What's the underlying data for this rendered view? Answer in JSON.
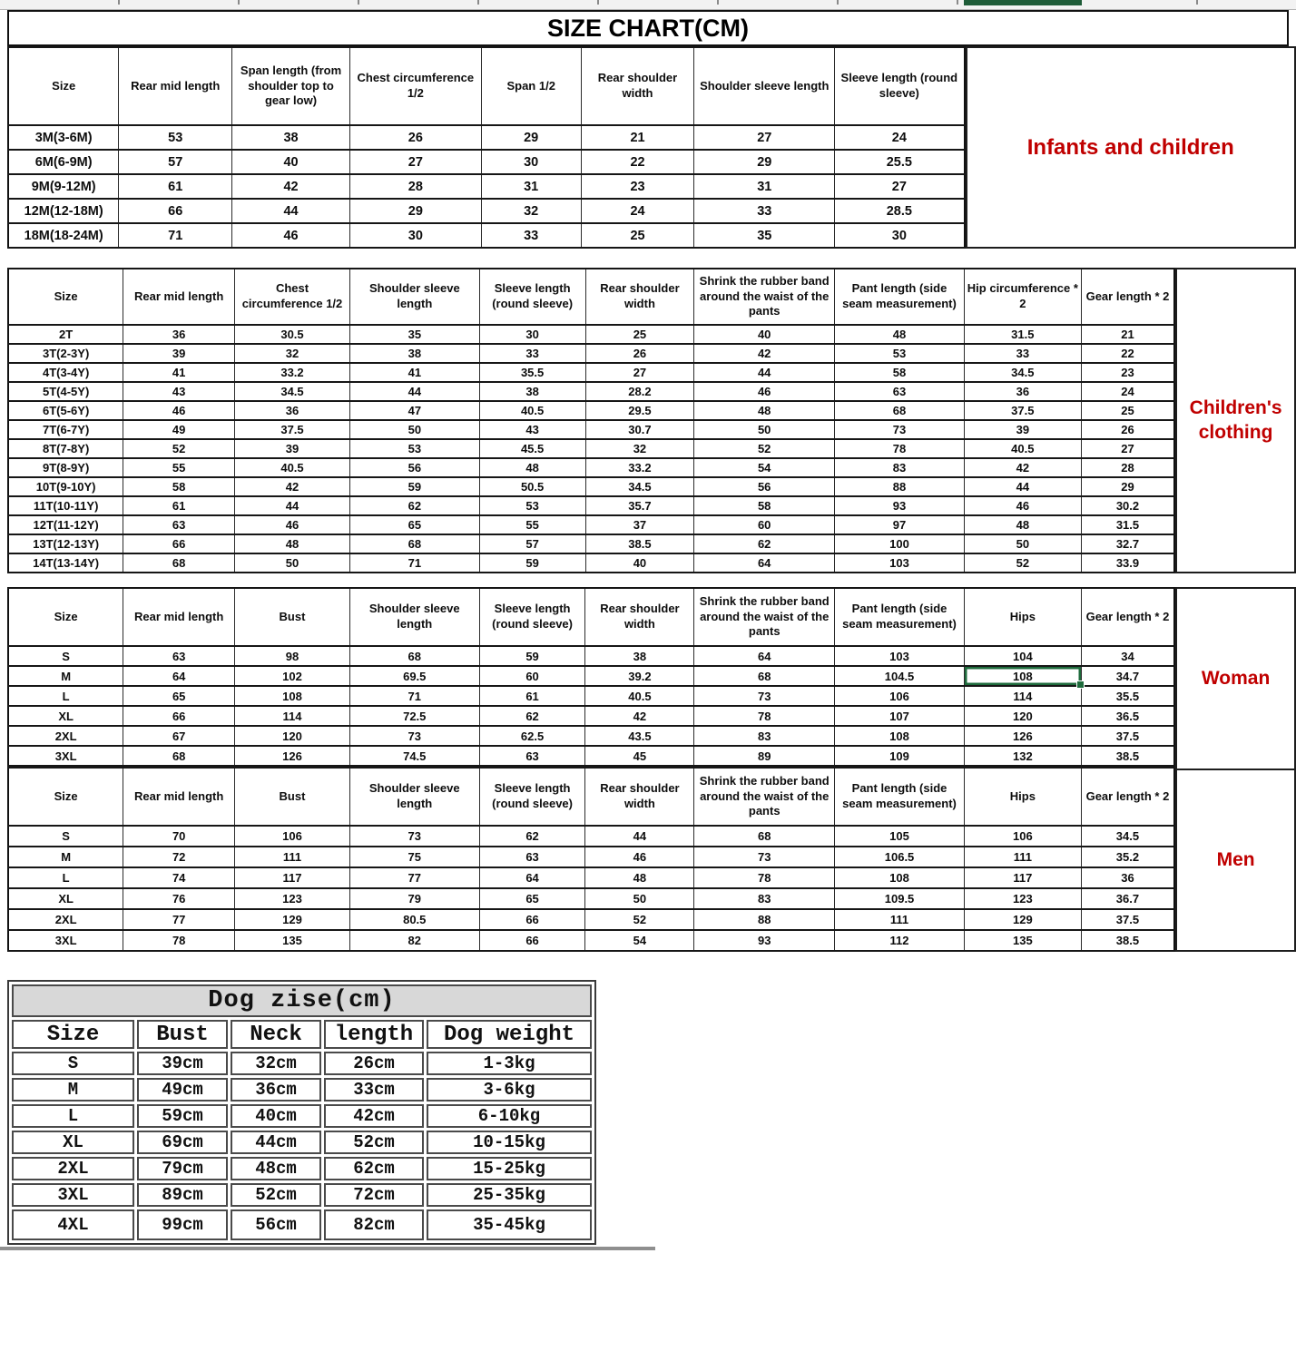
{
  "page": {
    "title": "SIZE CHART(CM)"
  },
  "colors": {
    "label_red": "#c00000",
    "row_blue": "#2e74b5",
    "row_navy": "#1f3864",
    "row_red": "#c00000",
    "selection_green": "#1e6b3c"
  },
  "tables": {
    "infants": {
      "label": "Infants and children",
      "default_color": "black",
      "headers": [
        "Size",
        "Rear mid length",
        "Span length (from shoulder top to gear low)",
        "Chest circumference 1/2",
        "Span 1/2",
        "Rear shoulder width",
        "Shoulder sleeve length",
        "Sleeve length (round sleeve)"
      ],
      "rows": [
        [
          "3M(3-6M)",
          "53",
          "38",
          "26",
          "29",
          "21",
          "27",
          "24"
        ],
        [
          "6M(6-9M)",
          "57",
          "40",
          "27",
          "30",
          "22",
          "29",
          "25.5"
        ],
        [
          "9M(9-12M)",
          "61",
          "42",
          "28",
          "31",
          "23",
          "31",
          "27"
        ],
        [
          "12M(12-18M)",
          "66",
          "44",
          "29",
          "32",
          "24",
          "33",
          "28.5"
        ],
        [
          "18M(18-24M)",
          "71",
          "46",
          "30",
          "33",
          "25",
          "35",
          "30"
        ]
      ]
    },
    "children": {
      "label": "Children's clothing",
      "default_color": "black",
      "black_cols": [
        5,
        8
      ],
      "row_colors": [
        "black",
        "blue",
        "blue",
        "blue",
        "blue",
        "blue",
        "navy",
        "navy",
        "navy",
        "navy",
        "red",
        "red",
        "red"
      ],
      "headers": [
        "Size",
        "Rear mid length",
        "Chest circumference 1/2",
        "Shoulder sleeve length",
        "Sleeve length (round sleeve)",
        "Rear shoulder width",
        "Shrink the rubber band around the waist of the pants",
        "Pant length (side seam measurement)",
        "Hip circumference * 2",
        "Gear length * 2"
      ],
      "rows": [
        [
          "2T",
          "36",
          "30.5",
          "35",
          "30",
          "25",
          "40",
          "48",
          "31.5",
          "21"
        ],
        [
          "3T(2-3Y)",
          "39",
          "32",
          "38",
          "33",
          "26",
          "42",
          "53",
          "33",
          "22"
        ],
        [
          "4T(3-4Y)",
          "41",
          "33.2",
          "41",
          "35.5",
          "27",
          "44",
          "58",
          "34.5",
          "23"
        ],
        [
          "5T(4-5Y)",
          "43",
          "34.5",
          "44",
          "38",
          "28.2",
          "46",
          "63",
          "36",
          "24"
        ],
        [
          "6T(5-6Y)",
          "46",
          "36",
          "47",
          "40.5",
          "29.5",
          "48",
          "68",
          "37.5",
          "25"
        ],
        [
          "7T(6-7Y)",
          "49",
          "37.5",
          "50",
          "43",
          "30.7",
          "50",
          "73",
          "39",
          "26"
        ],
        [
          "8T(7-8Y)",
          "52",
          "39",
          "53",
          "45.5",
          "32",
          "52",
          "78",
          "40.5",
          "27"
        ],
        [
          "9T(8-9Y)",
          "55",
          "40.5",
          "56",
          "48",
          "33.2",
          "54",
          "83",
          "42",
          "28"
        ],
        [
          "10T(9-10Y)",
          "58",
          "42",
          "59",
          "50.5",
          "34.5",
          "56",
          "88",
          "44",
          "29"
        ],
        [
          "11T(10-11Y)",
          "61",
          "44",
          "62",
          "53",
          "35.7",
          "58",
          "93",
          "46",
          "30.2"
        ],
        [
          "12T(11-12Y)",
          "63",
          "46",
          "65",
          "55",
          "37",
          "60",
          "97",
          "48",
          "31.5"
        ],
        [
          "13T(12-13Y)",
          "66",
          "48",
          "68",
          "57",
          "38.5",
          "62",
          "100",
          "50",
          "32.7"
        ],
        [
          "14T(13-14Y)",
          "68",
          "50",
          "71",
          "59",
          "40",
          "64",
          "103",
          "52",
          "33.9"
        ]
      ]
    },
    "woman": {
      "label": "Woman",
      "default_color": "dark",
      "selected_cell": {
        "row": 1,
        "col": 8
      },
      "headers": [
        "Size",
        "Rear mid length",
        "Bust",
        "Shoulder sleeve length",
        "Sleeve length (round sleeve)",
        "Rear shoulder width",
        "Shrink the rubber band around the waist of the pants",
        "Pant length (side seam measurement)",
        "Hips",
        "Gear length * 2"
      ],
      "rows": [
        [
          "S",
          "63",
          "98",
          "68",
          "59",
          "38",
          "64",
          "103",
          "104",
          "34"
        ],
        [
          "M",
          "64",
          "102",
          "69.5",
          "60",
          "39.2",
          "68",
          "104.5",
          "108",
          "34.7"
        ],
        [
          "L",
          "65",
          "108",
          "71",
          "61",
          "40.5",
          "73",
          "106",
          "114",
          "35.5"
        ],
        [
          "XL",
          "66",
          "114",
          "72.5",
          "62",
          "42",
          "78",
          "107",
          "120",
          "36.5"
        ],
        [
          "2XL",
          "67",
          "120",
          "73",
          "62.5",
          "43.5",
          "83",
          "108",
          "126",
          "37.5"
        ],
        [
          "3XL",
          "68",
          "126",
          "74.5",
          "63",
          "45",
          "89",
          "109",
          "132",
          "38.5"
        ]
      ]
    },
    "men": {
      "label": "Men",
      "default_color": "dark",
      "headers": [
        "Size",
        "Rear mid length",
        "Bust",
        "Shoulder sleeve length",
        "Sleeve length (round sleeve)",
        "Rear shoulder width",
        "Shrink the rubber band around the waist of the pants",
        "Pant length (side seam measurement)",
        "Hips",
        "Gear length * 2"
      ],
      "rows": [
        [
          "S",
          "70",
          "106",
          "73",
          "62",
          "44",
          "68",
          "105",
          "106",
          "34.5"
        ],
        [
          "M",
          "72",
          "111",
          "75",
          "63",
          "46",
          "73",
          "106.5",
          "111",
          "35.2"
        ],
        [
          "L",
          "74",
          "117",
          "77",
          "64",
          "48",
          "78",
          "108",
          "117",
          "36"
        ],
        [
          "XL",
          "76",
          "123",
          "79",
          "65",
          "50",
          "83",
          "109.5",
          "123",
          "36.7"
        ],
        [
          "2XL",
          "77",
          "129",
          "80.5",
          "66",
          "52",
          "88",
          "111",
          "129",
          "37.5"
        ],
        [
          "3XL",
          "78",
          "135",
          "82",
          "66",
          "54",
          "93",
          "112",
          "135",
          "38.5"
        ]
      ]
    },
    "dog": {
      "title": "Dog zise(cm)",
      "default_color": "black",
      "headers": [
        "Size",
        "Bust",
        "Neck",
        "length",
        "Dog weight"
      ],
      "rows": [
        [
          "S",
          "39cm",
          "32cm",
          "26cm",
          "1-3kg"
        ],
        [
          "M",
          "49cm",
          "36cm",
          "33cm",
          "3-6kg"
        ],
        [
          "L",
          "59cm",
          "40cm",
          "42cm",
          "6-10kg"
        ],
        [
          "XL",
          "69cm",
          "44cm",
          "52cm",
          "10-15kg"
        ],
        [
          "2XL",
          "79cm",
          "48cm",
          "62cm",
          "15-25kg"
        ],
        [
          "3XL",
          "89cm",
          "52cm",
          "72cm",
          "25-35kg"
        ],
        [
          "4XL",
          "99cm",
          "56cm",
          "82cm",
          "35-45kg"
        ]
      ]
    }
  }
}
